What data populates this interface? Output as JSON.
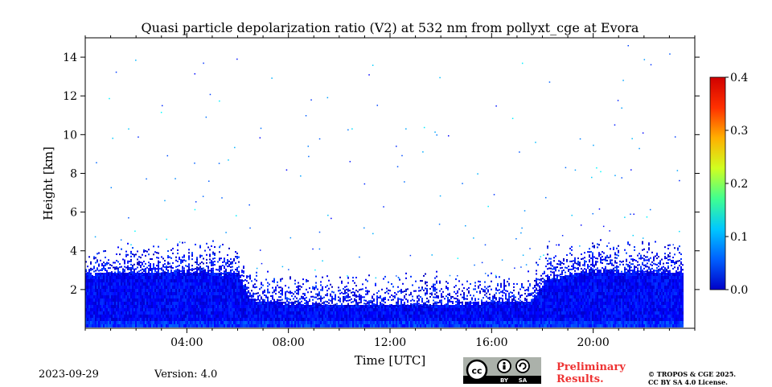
{
  "header": {
    "title": "Quasi particle depolarization ratio (V2) at 532 nm from pollyxt_cge at Evora"
  },
  "footer": {
    "date": "2023-09-29",
    "version": "Version: 4.0",
    "preliminary_line1": "Preliminary",
    "preliminary_line2": "Results.",
    "copyright_line1": "© TROPOS & CGE 2025.",
    "copyright_line2": "CC BY SA 4.0 License.",
    "license_badge": {
      "cc": "cc",
      "by": "BY",
      "sa": "SA"
    }
  },
  "chart_data": {
    "type": "heatmap",
    "title": "Quasi particle depolarization ratio (V2) at 532 nm from pollyxt_cge at Evora",
    "xlabel": "Time [UTC]",
    "ylabel": "Height [km]",
    "xlim_hours": [
      0,
      24
    ],
    "ylim_km": [
      0,
      15
    ],
    "x_ticks": [
      {
        "hour": 4,
        "label": "04:00"
      },
      {
        "hour": 8,
        "label": "08:00"
      },
      {
        "hour": 12,
        "label": "12:00"
      },
      {
        "hour": 16,
        "label": "16:00"
      },
      {
        "hour": 20,
        "label": "20:00"
      }
    ],
    "y_ticks": [
      {
        "km": 2,
        "label": "2"
      },
      {
        "km": 4,
        "label": "4"
      },
      {
        "km": 6,
        "label": "6"
      },
      {
        "km": 8,
        "label": "8"
      },
      {
        "km": 10,
        "label": "10"
      },
      {
        "km": 12,
        "label": "12"
      },
      {
        "km": 14,
        "label": "14"
      }
    ],
    "data_end_hour": 23.5,
    "colorbar": {
      "range": [
        0.0,
        0.4
      ],
      "colormap": "jet",
      "colors": [
        "#0000c8",
        "#0060ff",
        "#00c8ff",
        "#40ff90",
        "#d0ff20",
        "#ffb000",
        "#ff3000",
        "#d00000"
      ],
      "ticks": [
        {
          "value": 0.0,
          "label": "0.0"
        },
        {
          "value": 0.1,
          "label": "0.1"
        },
        {
          "value": 0.2,
          "label": "0.2"
        },
        {
          "value": 0.3,
          "label": "0.3"
        },
        {
          "value": 0.4,
          "label": "0.4"
        }
      ]
    },
    "boundary_layer_km": [
      {
        "hour": 0,
        "top": 2.7
      },
      {
        "hour": 4,
        "top": 2.9
      },
      {
        "hour": 6,
        "top": 2.7
      },
      {
        "hour": 6.5,
        "top": 1.4
      },
      {
        "hour": 8,
        "top": 1.2
      },
      {
        "hour": 12,
        "top": 1.1
      },
      {
        "hour": 17.5,
        "top": 1.3
      },
      {
        "hour": 18.2,
        "top": 2.5
      },
      {
        "hour": 20,
        "top": 2.9
      },
      {
        "hour": 23.5,
        "top": 2.8
      }
    ],
    "typical_value_in_layer": 0.05
  }
}
